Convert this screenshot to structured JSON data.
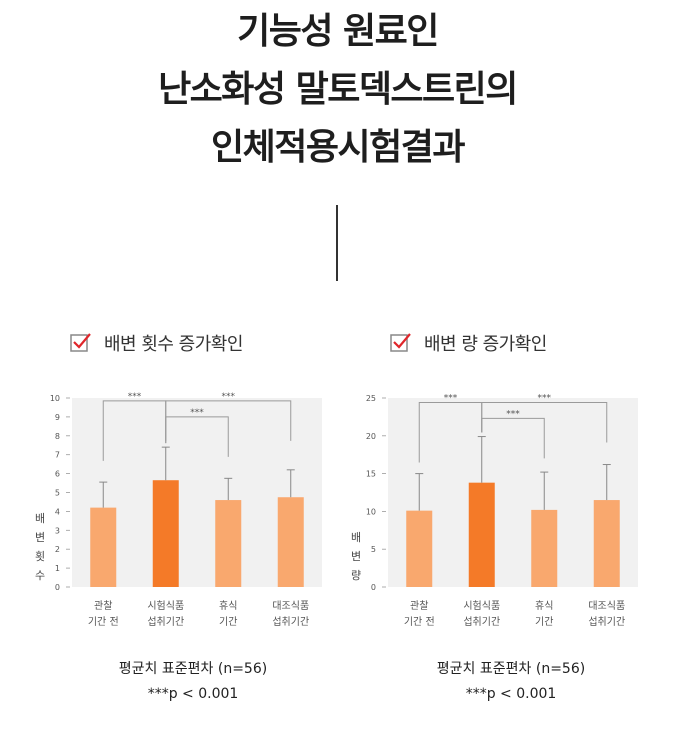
{
  "title_lines": [
    "기능성 원료인",
    "난소화성 말토덱스트린의",
    "인체적용시험결과"
  ],
  "colors": {
    "bar_light": "#f9a86e",
    "bar_dark": "#f47a28",
    "check": "#e0262b",
    "chart_bg": "#f1f1f1",
    "bracket": "#9a9a9a"
  },
  "chart_data": [
    {
      "type": "bar",
      "heading": "배변 횟수 증가확인",
      "ylabel": "배변횟수",
      "ylim": [
        0,
        10
      ],
      "yticks": [
        "0",
        "1",
        "2",
        "3",
        "4",
        "5",
        "6",
        "7",
        "8",
        "9",
        "10"
      ],
      "categories": [
        [
          "관찰",
          "기간 전"
        ],
        [
          "시험식품",
          "섭취기간"
        ],
        [
          "휴식",
          "기간"
        ],
        [
          "대조식품",
          "섭취기간"
        ]
      ],
      "values": [
        4.2,
        5.65,
        4.6,
        4.75
      ],
      "errors": [
        1.35,
        1.75,
        1.15,
        1.45
      ],
      "highlight_index": 1,
      "significance": [
        {
          "from": 0,
          "to": 1,
          "label": "***",
          "level": 9.85
        },
        {
          "from": 1,
          "to": 3,
          "label": "***",
          "level": 9.85
        },
        {
          "from": 1,
          "to": 2,
          "label": "***",
          "level": 9.0
        }
      ],
      "footnote": "평균치 표준편차 (n=56)",
      "pvalue": "***p < 0.001"
    },
    {
      "type": "bar",
      "heading": "배변 량 증가확인",
      "ylabel": "배변량",
      "ylim": [
        0,
        25
      ],
      "yticks": [
        "0",
        "5",
        "10",
        "15",
        "20",
        "25"
      ],
      "categories": [
        [
          "관찰",
          "기간 전"
        ],
        [
          "시험식품",
          "섭취기간"
        ],
        [
          "휴식",
          "기간"
        ],
        [
          "대조식품",
          "섭취기간"
        ]
      ],
      "values": [
        10.1,
        13.8,
        10.2,
        11.5
      ],
      "errors": [
        4.9,
        6.1,
        5.0,
        4.7
      ],
      "highlight_index": 1,
      "significance": [
        {
          "from": 0,
          "to": 1,
          "label": "***",
          "level": 24.4
        },
        {
          "from": 1,
          "to": 3,
          "label": "***",
          "level": 24.4
        },
        {
          "from": 1,
          "to": 2,
          "label": "***",
          "level": 22.3
        }
      ],
      "footnote": "평균치 표준편차 (n=56)",
      "pvalue": "***p < 0.001"
    }
  ]
}
